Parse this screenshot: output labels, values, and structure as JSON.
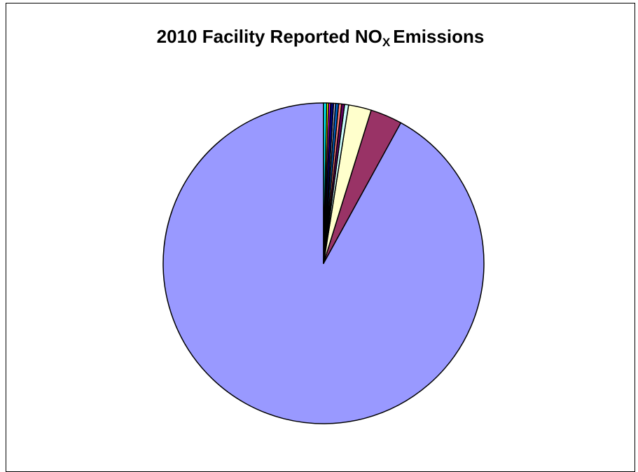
{
  "chart_data": {
    "type": "pie",
    "title_main": "2010 Facility Reported NO",
    "title_sub": "X",
    "title_end": "Emissions",
    "start_angle_deg": 0,
    "direction": "counterclockwise",
    "slices": [
      {
        "value": 92.0,
        "color": "#9999ff"
      },
      {
        "value": 3.2,
        "color": "#993366"
      },
      {
        "value": 2.3,
        "color": "#ffffcc"
      },
      {
        "value": 0.4,
        "color": "#ccffff"
      },
      {
        "value": 0.3,
        "color": "#660066"
      },
      {
        "value": 0.3,
        "color": "#ff8080"
      },
      {
        "value": 0.3,
        "color": "#0066cc"
      },
      {
        "value": 0.2,
        "color": "#ccccff"
      },
      {
        "value": 0.3,
        "color": "#000080"
      },
      {
        "value": 0.2,
        "color": "#ff00ff"
      },
      {
        "value": 0.2,
        "color": "#ffff00"
      },
      {
        "value": 0.3,
        "color": "#00ffff"
      }
    ]
  }
}
